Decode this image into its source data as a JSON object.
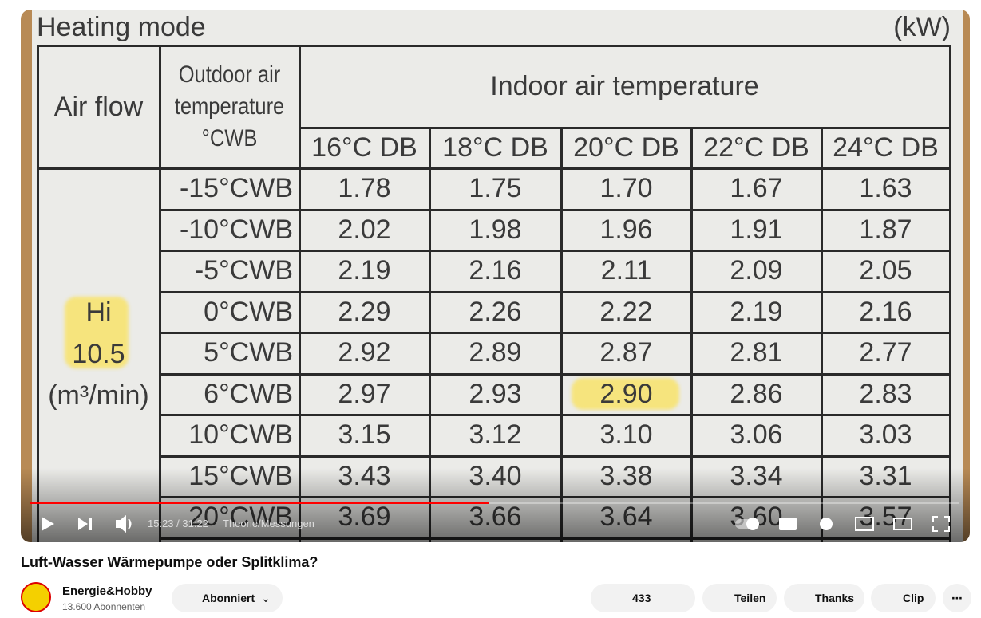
{
  "video": {
    "table": {
      "title": "Heating mode",
      "unit": "(kW)",
      "airflow_header": "Air flow",
      "outdoor_header": [
        "Outdoor air",
        "temperature",
        "°CWB"
      ],
      "indoor_header": "Indoor air temperature",
      "columns": [
        "16°C DB",
        "18°C DB",
        "20°C DB",
        "22°C DB",
        "24°C DB"
      ],
      "airflow_label": [
        "Hi",
        "10.5",
        "(m³/min)"
      ],
      "rows": [
        {
          "label": "-15°CWB",
          "values": [
            "1.78",
            "1.75",
            "1.70",
            "1.67",
            "1.63"
          ]
        },
        {
          "label": "-10°CWB",
          "values": [
            "2.02",
            "1.98",
            "1.96",
            "1.91",
            "1.87"
          ]
        },
        {
          "label": "-5°CWB",
          "values": [
            "2.19",
            "2.16",
            "2.11",
            "2.09",
            "2.05"
          ]
        },
        {
          "label": "0°CWB",
          "values": [
            "2.29",
            "2.26",
            "2.22",
            "2.19",
            "2.16"
          ]
        },
        {
          "label": "5°CWB",
          "values": [
            "2.92",
            "2.89",
            "2.87",
            "2.81",
            "2.77"
          ]
        },
        {
          "label": "6°CWB",
          "values": [
            "2.97",
            "2.93",
            "2.90",
            "2.86",
            "2.83"
          ]
        },
        {
          "label": "10°CWB",
          "values": [
            "3.15",
            "3.12",
            "3.10",
            "3.06",
            "3.03"
          ]
        },
        {
          "label": "15°CWB",
          "values": [
            "3.43",
            "3.40",
            "3.38",
            "3.34",
            "3.31"
          ]
        },
        {
          "label": "20°CWB",
          "values": [
            "3.69",
            "3.66",
            "3.64",
            "3.60",
            "3.57"
          ]
        }
      ]
    },
    "player": {
      "time": "15:23 / 31:22",
      "chapter": "Theorie/Messungen"
    }
  },
  "video_title": "Luft-Wasser Wärmepumpe oder Splitklima?",
  "channel": {
    "name": "Energie&Hobby",
    "subscribers": "13.600 Abonnenten",
    "subscribe_button": "Abonniert"
  },
  "actions": {
    "likes": "433",
    "share": "Teilen",
    "thanks": "Thanks",
    "clip": "Clip"
  }
}
